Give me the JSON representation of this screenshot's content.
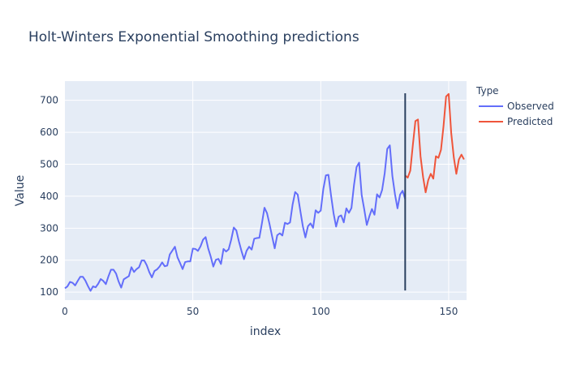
{
  "chart_data": {
    "type": "line",
    "title": "Holt-Winters Exponential Smoothing predictions",
    "xlabel": "index",
    "ylabel": "Value",
    "xlim": [
      0,
      157
    ],
    "ylim": [
      75,
      760
    ],
    "x_ticks": [
      0,
      50,
      100,
      150
    ],
    "y_ticks": [
      100,
      200,
      300,
      400,
      500,
      600,
      700
    ],
    "grid": true,
    "legend": {
      "title": "Type",
      "placement": "right"
    },
    "series": [
      {
        "name": "Observed",
        "color": "#636efa",
        "x_start": 0,
        "values": [
          112,
          118,
          132,
          129,
          121,
          135,
          148,
          148,
          136,
          119,
          104,
          118,
          115,
          126,
          141,
          135,
          125,
          149,
          170,
          170,
          158,
          133,
          114,
          140,
          145,
          150,
          178,
          163,
          172,
          178,
          199,
          199,
          184,
          162,
          146,
          166,
          171,
          180,
          193,
          181,
          183,
          218,
          230,
          242,
          209,
          191,
          172,
          194,
          196,
          196,
          236,
          235,
          229,
          243,
          264,
          272,
          237,
          211,
          180,
          201,
          204,
          188,
          235,
          227,
          234,
          264,
          302,
          293,
          259,
          229,
          203,
          229,
          242,
          233,
          267,
          269,
          270,
          315,
          364,
          347,
          312,
          274,
          237,
          278,
          284,
          277,
          317,
          313,
          318,
          374,
          413,
          405,
          355,
          306,
          271,
          306,
          315,
          301,
          356,
          348,
          355,
          422,
          465,
          467,
          404,
          347,
          305,
          336,
          340,
          318,
          362,
          348,
          363,
          435,
          491,
          505,
          404,
          359,
          310,
          337,
          360,
          342,
          406,
          396,
          420,
          472,
          548,
          559,
          463,
          407,
          362,
          405,
          417,
          391
        ]
      },
      {
        "name": "Predicted",
        "color": "#ef553b",
        "x_start": 133,
        "values": [
          465,
          458,
          480,
          560,
          635,
          640,
          525,
          460,
          412,
          450,
          470,
          455,
          525,
          520,
          545,
          620,
          712,
          720,
          598,
          522,
          470,
          515,
          530,
          515
        ]
      }
    ],
    "vline": {
      "x": 133,
      "y_from": 105,
      "y_to": 722,
      "color": "#2a3f5f"
    }
  }
}
